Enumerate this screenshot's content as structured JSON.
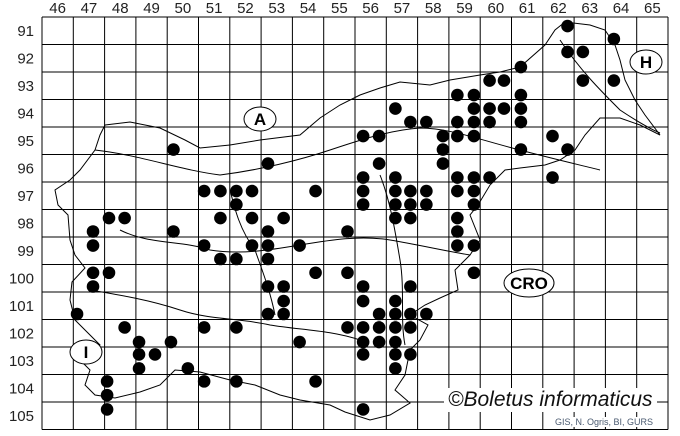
{
  "map": {
    "columns": [
      "46",
      "47",
      "48",
      "49",
      "50",
      "51",
      "52",
      "53",
      "54",
      "55",
      "56",
      "57",
      "58",
      "59",
      "60",
      "61",
      "62",
      "63",
      "64",
      "65"
    ],
    "rows": [
      "91",
      "92",
      "93",
      "94",
      "95",
      "96",
      "97",
      "98",
      "99",
      "100",
      "101",
      "102",
      "103",
      "104",
      "105"
    ],
    "country_labels": {
      "austria": "A",
      "hungary": "H",
      "croatia": "CRO",
      "italy": "I"
    },
    "copyright": "©Boletus informaticus",
    "attribution": "GIS, N. Ogris, BI, GURS",
    "dot_color": "#000000",
    "records": [
      [
        62.79,
        91.33
      ],
      [
        64.27,
        91.8
      ],
      [
        62.79,
        92.27
      ],
      [
        63.28,
        92.27
      ],
      [
        61.3,
        92.82
      ],
      [
        63.28,
        93.31
      ],
      [
        64.27,
        93.31
      ],
      [
        60.3,
        93.31
      ],
      [
        60.76,
        93.31
      ],
      [
        59.27,
        93.84
      ],
      [
        59.8,
        93.84
      ],
      [
        61.3,
        93.84
      ],
      [
        57.29,
        94.33
      ],
      [
        59.8,
        94.33
      ],
      [
        60.3,
        94.33
      ],
      [
        60.76,
        94.33
      ],
      [
        61.3,
        94.33
      ],
      [
        57.77,
        94.82
      ],
      [
        58.28,
        94.82
      ],
      [
        59.27,
        94.82
      ],
      [
        59.8,
        94.82
      ],
      [
        60.3,
        94.82
      ],
      [
        61.3,
        94.82
      ],
      [
        56.26,
        95.33
      ],
      [
        56.77,
        95.33
      ],
      [
        58.81,
        95.33
      ],
      [
        59.27,
        95.33
      ],
      [
        59.8,
        95.33
      ],
      [
        62.31,
        95.33
      ],
      [
        58.81,
        95.82
      ],
      [
        61.3,
        95.82
      ],
      [
        62.79,
        95.82
      ],
      [
        56.77,
        96.33
      ],
      [
        58.81,
        96.33
      ],
      [
        56.26,
        96.84
      ],
      [
        57.29,
        96.84
      ],
      [
        59.27,
        96.84
      ],
      [
        59.8,
        96.84
      ],
      [
        60.3,
        96.84
      ],
      [
        62.31,
        96.84
      ],
      [
        56.26,
        97.33
      ],
      [
        57.29,
        97.33
      ],
      [
        57.77,
        97.33
      ],
      [
        58.28,
        97.33
      ],
      [
        59.27,
        97.33
      ],
      [
        59.8,
        97.33
      ],
      [
        56.26,
        97.82
      ],
      [
        57.29,
        97.82
      ],
      [
        57.77,
        97.82
      ],
      [
        58.28,
        97.82
      ],
      [
        59.8,
        97.82
      ],
      [
        57.29,
        98.31
      ],
      [
        57.77,
        98.31
      ],
      [
        59.27,
        98.31
      ],
      [
        59.27,
        98.8
      ],
      [
        55.76,
        98.8
      ],
      [
        59.27,
        99.31
      ],
      [
        59.8,
        99.31
      ],
      [
        59.8,
        100.3
      ],
      [
        55.76,
        100.3
      ],
      [
        56.26,
        100.8
      ],
      [
        57.77,
        100.8
      ],
      [
        56.26,
        101.33
      ],
      [
        57.29,
        101.33
      ],
      [
        56.77,
        101.8
      ],
      [
        57.29,
        101.8
      ],
      [
        57.77,
        101.8
      ],
      [
        58.28,
        101.8
      ],
      [
        55.76,
        102.29
      ],
      [
        56.26,
        102.29
      ],
      [
        56.77,
        102.29
      ],
      [
        57.29,
        102.29
      ],
      [
        57.77,
        102.29
      ],
      [
        56.26,
        102.82
      ],
      [
        56.77,
        102.82
      ],
      [
        57.29,
        102.82
      ],
      [
        56.26,
        103.27
      ],
      [
        57.29,
        103.27
      ],
      [
        57.77,
        103.27
      ],
      [
        57.29,
        103.78
      ],
      [
        56.26,
        105.27
      ],
      [
        50.2,
        95.82
      ],
      [
        53.22,
        96.33
      ],
      [
        51.18,
        97.33
      ],
      [
        51.7,
        97.33
      ],
      [
        52.21,
        97.33
      ],
      [
        52.71,
        97.33
      ],
      [
        54.74,
        97.33
      ],
      [
        52.21,
        97.82
      ],
      [
        48.14,
        98.31
      ],
      [
        48.64,
        98.31
      ],
      [
        51.7,
        98.31
      ],
      [
        52.71,
        98.31
      ],
      [
        53.72,
        98.31
      ],
      [
        47.63,
        98.8
      ],
      [
        50.2,
        98.8
      ],
      [
        53.22,
        98.8
      ],
      [
        47.63,
        99.31
      ],
      [
        51.18,
        99.31
      ],
      [
        52.71,
        99.31
      ],
      [
        53.22,
        99.31
      ],
      [
        54.23,
        99.31
      ],
      [
        51.7,
        99.8
      ],
      [
        52.21,
        99.8
      ],
      [
        53.22,
        99.8
      ],
      [
        47.63,
        100.3
      ],
      [
        48.14,
        100.3
      ],
      [
        54.74,
        100.3
      ],
      [
        47.63,
        100.8
      ],
      [
        53.22,
        100.8
      ],
      [
        53.72,
        100.8
      ],
      [
        53.72,
        101.33
      ],
      [
        47.12,
        101.8
      ],
      [
        53.22,
        101.8
      ],
      [
        53.72,
        101.8
      ],
      [
        48.64,
        102.29
      ],
      [
        51.18,
        102.29
      ],
      [
        52.21,
        102.29
      ],
      [
        49.1,
        102.82
      ],
      [
        50.12,
        102.82
      ],
      [
        54.23,
        102.82
      ],
      [
        49.1,
        103.27
      ],
      [
        49.61,
        103.27
      ],
      [
        49.1,
        103.78
      ],
      [
        50.66,
        103.78
      ],
      [
        48.08,
        104.25
      ],
      [
        51.18,
        104.25
      ],
      [
        52.21,
        104.25
      ],
      [
        54.74,
        104.25
      ],
      [
        48.08,
        104.75
      ],
      [
        48.08,
        105.27
      ]
    ]
  }
}
